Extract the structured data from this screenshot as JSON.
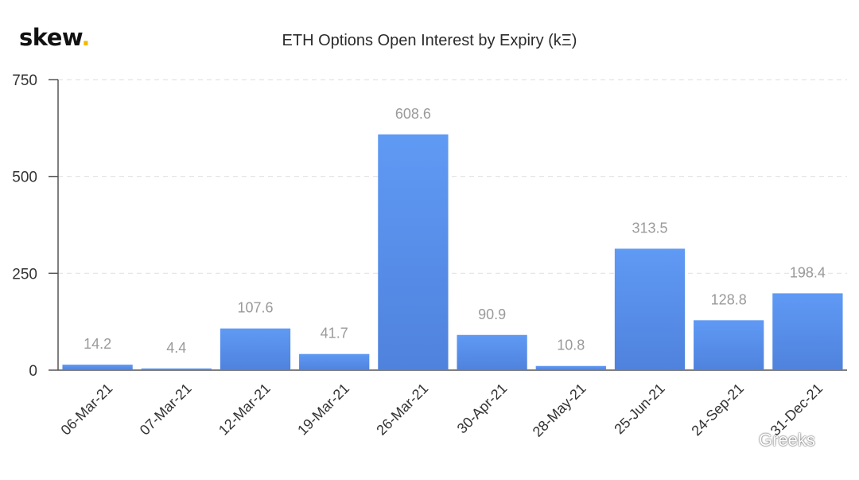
{
  "brand": {
    "logo_text": "skew",
    "logo_dot": ".",
    "logo_dot_color": "#f5b800"
  },
  "watermark": {
    "text": "Greeks",
    "icon": "wechat-icon"
  },
  "chart_data": {
    "type": "bar",
    "title": "ETH Options Open Interest by Expiry (kΞ)",
    "xlabel": "",
    "ylabel": "",
    "categories": [
      "06-Mar-21",
      "07-Mar-21",
      "12-Mar-21",
      "19-Mar-21",
      "26-Mar-21",
      "30-Apr-21",
      "28-May-21",
      "25-Jun-21",
      "24-Sep-21",
      "31-Dec-21"
    ],
    "values": [
      14.2,
      4.4,
      107.6,
      41.7,
      608.6,
      90.9,
      10.8,
      313.5,
      128.8,
      198.4
    ],
    "value_labels": [
      "14.2",
      "4.4",
      "107.6",
      "41.7",
      "608.6",
      "90.9",
      "10.8",
      "313.5",
      "128.8",
      "198.4"
    ],
    "ylim": [
      0,
      750
    ],
    "yticks": [
      0,
      250,
      500,
      750
    ],
    "ytick_labels": [
      "0",
      "250",
      "500",
      "750"
    ],
    "grid": true,
    "legend": "none",
    "colors": {
      "bar_top": "#5f9af5",
      "bar_bottom": "#4f82dd",
      "label": "#9a9a9a",
      "grid": "#e3e3e3",
      "axis": "#555555"
    }
  }
}
